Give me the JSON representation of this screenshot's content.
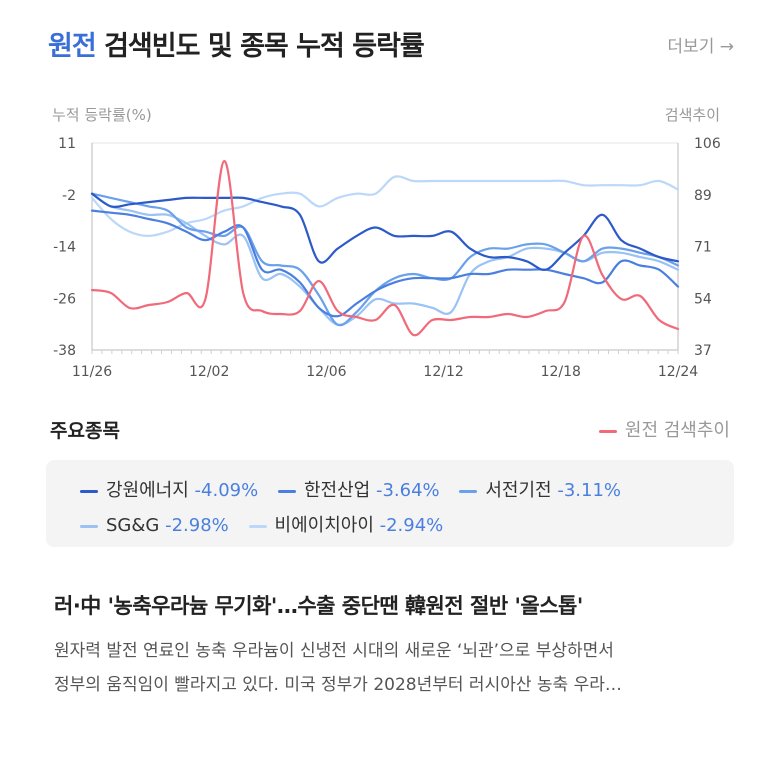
{
  "header": {
    "title_highlight": "원전",
    "title_rest": "검색빈도 및 종목 누적 등락률",
    "more_label": "더보기 →"
  },
  "chart_data": {
    "type": "line",
    "ylabel": "누적 등락률(%)",
    "y2label": "검색추이",
    "x_ticks": [
      "11/26",
      "12/02",
      "12/06",
      "12/12",
      "12/18",
      "12/24"
    ],
    "y_ticks": [
      "11",
      "-2",
      "-14",
      "-26",
      "-38"
    ],
    "y2_ticks": [
      "106",
      "89",
      "71",
      "54",
      "37"
    ],
    "ylim": [
      -38,
      11
    ],
    "y2lim": [
      37,
      106
    ],
    "grid": false,
    "n_points": 32,
    "series": [
      {
        "name": "강원에너지",
        "color": "#2c5ac8",
        "pct": "-4.09%",
        "values": [
          -1,
          -4,
          -3.5,
          -3,
          -2.5,
          -2,
          -2,
          -2,
          -2,
          -3,
          -4,
          -6,
          -17,
          -14,
          -11,
          -9,
          -11,
          -11,
          -11,
          -10,
          -14,
          -16,
          -16,
          -17,
          -19,
          -15,
          -11,
          -6,
          -12,
          -14,
          -16,
          -17
        ]
      },
      {
        "name": "한전산업",
        "color": "#4a7fe0",
        "pct": "-3.64%",
        "values": [
          -5,
          -5.5,
          -6,
          -7,
          -8,
          -10,
          -12,
          -10,
          -9,
          -19,
          -19,
          -22,
          -28,
          -30,
          -27,
          -24,
          -22,
          -21,
          -21,
          -21,
          -20,
          -20,
          -19,
          -19,
          -19,
          -20,
          -21,
          -22,
          -17,
          -18,
          -19,
          -23
        ]
      },
      {
        "name": "서전기전",
        "color": "#6aa0ec",
        "pct": "-3.11%",
        "values": [
          -1,
          -2,
          -3,
          -4,
          -5,
          -9,
          -10,
          -11,
          -9,
          -17,
          -18,
          -19,
          -25,
          -32,
          -29,
          -24,
          -21,
          -20,
          -21,
          -21,
          -16,
          -14,
          -14,
          -13,
          -13,
          -15,
          -17,
          -14,
          -14,
          -15,
          -16,
          -18
        ]
      },
      {
        "name": "SG&G",
        "color": "#9ac2f4",
        "pct": "-2.98%",
        "values": [
          -1,
          -4,
          -5,
          -6,
          -6,
          -8,
          -11,
          -13,
          -11,
          -21,
          -20,
          -23,
          -28,
          -32,
          -30,
          -26,
          -27,
          -27,
          -28,
          -29,
          -20,
          -17,
          -16,
          -14,
          -14,
          -15,
          -17,
          -15,
          -15,
          -16,
          -17,
          -19
        ]
      },
      {
        "name": "비에이치아이",
        "color": "#bcd8f8",
        "pct": "-2.94%",
        "values": [
          -2,
          -7,
          -10,
          -11,
          -10,
          -8,
          -7,
          -5,
          -4,
          -2,
          -1,
          -1,
          -4,
          -2,
          -1,
          -1,
          3,
          2,
          2,
          2,
          2,
          2,
          2,
          2,
          2,
          2,
          1,
          1,
          1,
          1,
          2,
          0
        ]
      }
    ],
    "search_series": {
      "name": "원전 검색추이",
      "color": "#f06a7a",
      "values": [
        57,
        56,
        51,
        52,
        53,
        56,
        54,
        100,
        56,
        50,
        49,
        50,
        60,
        50,
        48,
        47,
        52,
        42,
        47,
        47,
        48,
        48,
        49,
        48,
        50,
        53,
        75,
        62,
        54,
        55,
        47,
        44
      ]
    }
  },
  "main_stocks": {
    "title": "주요종목",
    "search_legend_label": "원전 검색추이"
  },
  "news": {
    "title": "러·中 '농축우라늄 무기화'…수출 중단땐 韓원전 절반 '올스톱'",
    "line1": "원자력 발전 연료인 농축 우라늄이 신냉전 시대의 새로운 ‘뇌관’으로 부상하면서",
    "line2": "정부의 움직임이 빨라지고 있다. 미국 정부가 2028년부터 러시아산 농축 우라…"
  }
}
